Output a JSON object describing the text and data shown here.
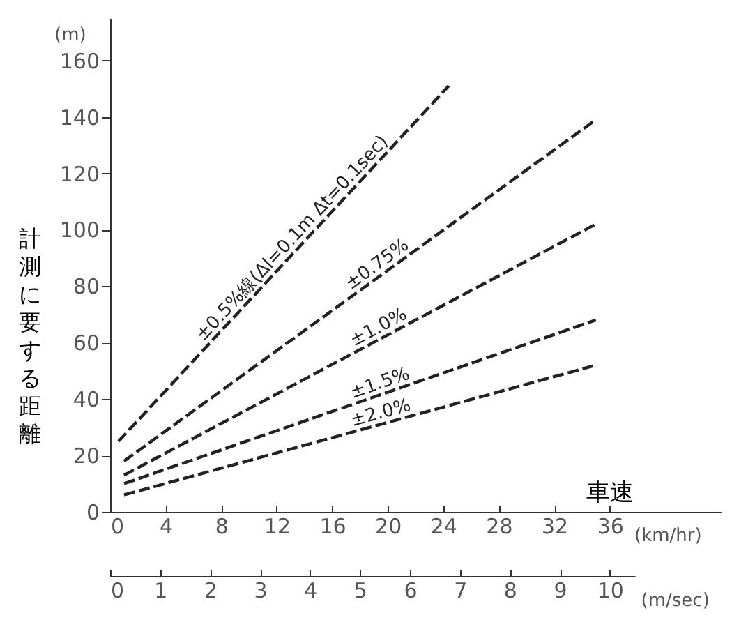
{
  "chart_data": {
    "type": "line",
    "xlabel": "車速",
    "ylabel": "計測に要する距離",
    "x2label": "(m/sec)",
    "annotations": [
      "(m)",
      "(km/hr)"
    ],
    "xlim": [
      0,
      44
    ],
    "xticks": [
      0,
      4,
      8,
      12,
      16,
      20,
      24,
      28,
      32,
      36
    ],
    "x2lim": [
      0,
      10.5
    ],
    "x2ticks": [
      0,
      1,
      2,
      3,
      4,
      5,
      6,
      7,
      8,
      9,
      10
    ],
    "ylim": [
      0,
      175
    ],
    "yticks": [
      0,
      20,
      40,
      60,
      80,
      100,
      120,
      140,
      160
    ],
    "grid": false,
    "legend": false,
    "marker": "none",
    "line_style": "dashed",
    "series": [
      {
        "name": "±0.5%線(Δl=0.1m Δt=0.1sec)",
        "color": "#222222",
        "x": [
          0.6,
          24.4
        ],
        "values": [
          25,
          151
        ]
      },
      {
        "name": "±0.75%",
        "color": "#222222",
        "x": [
          1,
          35
        ],
        "values": [
          18,
          139
        ]
      },
      {
        "name": "±1.0%",
        "color": "#222222",
        "x": [
          1,
          35
        ],
        "values": [
          13,
          102
        ]
      },
      {
        "name": "±1.5%",
        "color": "#222222",
        "x": [
          1,
          35
        ],
        "values": [
          10,
          68
        ]
      },
      {
        "name": "±2.0%",
        "color": "#222222",
        "x": [
          1,
          35
        ],
        "values": [
          6,
          52
        ]
      }
    ]
  }
}
